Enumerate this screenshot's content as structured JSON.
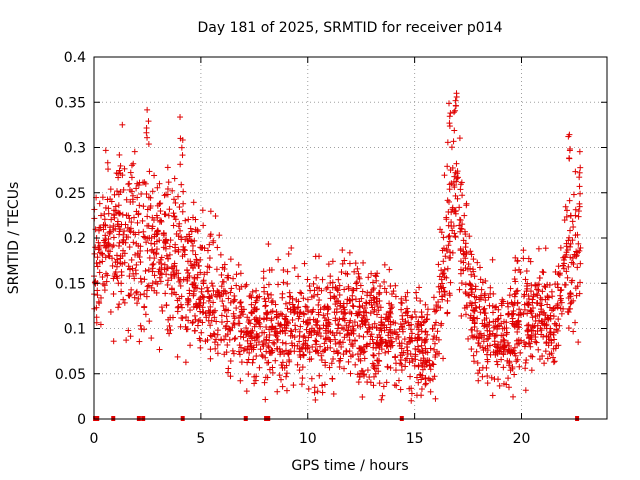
{
  "chart_data": {
    "type": "scatter",
    "title": "Day 181 of 2025, SRMTID for receiver p014",
    "xlabel": "GPS time / hours",
    "ylabel": "SRMTID / TECUs",
    "xlim": [
      0,
      24
    ],
    "ylim": [
      0,
      0.4
    ],
    "xticks": [
      0,
      5,
      10,
      15,
      20
    ],
    "xtick_labels": [
      "0",
      "5",
      "10",
      "15",
      "20"
    ],
    "yticks": [
      0,
      0.05,
      0.1,
      0.15,
      0.2,
      0.25,
      0.3,
      0.35,
      0.4
    ],
    "ytick_labels": [
      "0",
      "0.05",
      "0.1",
      "0.15",
      "0.2",
      "0.25",
      "0.3",
      "0.35",
      "0.4"
    ],
    "grid": true,
    "marker": "plus",
    "color": "#e00000",
    "series": [
      {
        "name": "SRMTID",
        "profile_x": [
          0,
          1,
          2,
          3,
          4,
          5,
          6,
          7,
          8,
          9,
          10,
          11,
          12,
          13,
          14,
          15,
          16,
          16.5,
          17,
          17.5,
          18,
          19,
          20,
          21,
          21.5,
          22,
          22.5,
          22.8
        ],
        "profile_y": [
          0.18,
          0.2,
          0.19,
          0.19,
          0.17,
          0.15,
          0.13,
          0.1,
          0.1,
          0.1,
          0.1,
          0.1,
          0.11,
          0.1,
          0.1,
          0.08,
          0.09,
          0.2,
          0.26,
          0.15,
          0.1,
          0.09,
          0.11,
          0.11,
          0.11,
          0.16,
          0.18,
          0.17
        ],
        "peaks": [
          {
            "x": 2.5,
            "y": 0.348
          },
          {
            "x": 4.1,
            "y": 0.335
          },
          {
            "x": 16.6,
            "y": 0.35
          },
          {
            "x": 16.9,
            "y": 0.375
          },
          {
            "x": 22.2,
            "y": 0.315
          },
          {
            "x": 22.7,
            "y": 0.3
          }
        ],
        "zero_markers_x": [
          0.05,
          0.15,
          0.9,
          2.1,
          2.3,
          4.15,
          7.1,
          8.05,
          8.15,
          14.4,
          22.6
        ],
        "point_count": 2400
      }
    ]
  }
}
